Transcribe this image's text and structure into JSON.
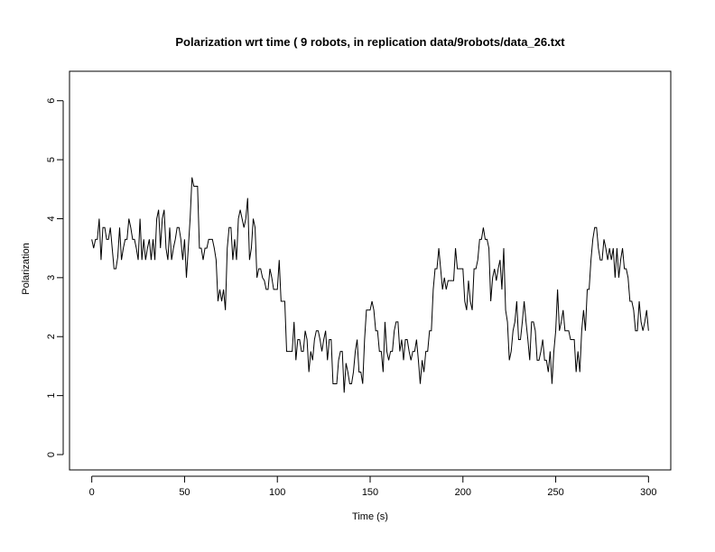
{
  "chart_data": {
    "type": "line",
    "title": "Polarization wrt time ( 9 robots, in replication  data/9robots/data_26.txt",
    "xlabel": "Time (s)",
    "ylabel": "Polarization",
    "xlim": [
      -12,
      312
    ],
    "ylim": [
      -0.26,
      6.5
    ],
    "x_ticks": [
      0,
      50,
      100,
      150,
      200,
      250,
      300
    ],
    "y_ticks": [
      0,
      1,
      2,
      3,
      4,
      5,
      6
    ],
    "grid": false,
    "series": [
      {
        "values": [
          [
            0,
            3.65
          ],
          [
            1,
            3.5
          ],
          [
            2,
            3.65
          ],
          [
            3,
            3.65
          ],
          [
            4,
            4.0
          ],
          [
            5,
            3.3
          ],
          [
            6,
            3.85
          ],
          [
            7,
            3.85
          ],
          [
            8,
            3.65
          ],
          [
            9,
            3.65
          ],
          [
            10,
            3.85
          ],
          [
            11,
            3.5
          ],
          [
            12,
            3.15
          ],
          [
            13,
            3.15
          ],
          [
            14,
            3.35
          ],
          [
            15,
            3.85
          ],
          [
            16,
            3.3
          ],
          [
            17,
            3.5
          ],
          [
            18,
            3.65
          ],
          [
            19,
            3.65
          ],
          [
            20,
            4.0
          ],
          [
            21,
            3.85
          ],
          [
            22,
            3.65
          ],
          [
            23,
            3.65
          ],
          [
            24,
            3.5
          ],
          [
            25,
            3.3
          ],
          [
            26,
            4.0
          ],
          [
            27,
            3.3
          ],
          [
            28,
            3.65
          ],
          [
            29,
            3.3
          ],
          [
            30,
            3.5
          ],
          [
            31,
            3.65
          ],
          [
            32,
            3.3
          ],
          [
            33,
            3.65
          ],
          [
            34,
            3.3
          ],
          [
            35,
            4.0
          ],
          [
            36,
            4.15
          ],
          [
            37,
            3.5
          ],
          [
            38,
            4.0
          ],
          [
            39,
            4.15
          ],
          [
            40,
            3.5
          ],
          [
            41,
            3.3
          ],
          [
            42,
            3.85
          ],
          [
            43,
            3.3
          ],
          [
            44,
            3.5
          ],
          [
            45,
            3.65
          ],
          [
            46,
            3.85
          ],
          [
            47,
            3.85
          ],
          [
            48,
            3.65
          ],
          [
            49,
            3.3
          ],
          [
            50,
            3.65
          ],
          [
            51,
            3.0
          ],
          [
            52,
            3.5
          ],
          [
            53,
            4.0
          ],
          [
            54,
            4.7
          ],
          [
            55,
            4.55
          ],
          [
            56,
            4.55
          ],
          [
            57,
            4.55
          ],
          [
            58,
            3.5
          ],
          [
            59,
            3.5
          ],
          [
            60,
            3.3
          ],
          [
            61,
            3.5
          ],
          [
            62,
            3.5
          ],
          [
            63,
            3.65
          ],
          [
            64,
            3.65
          ],
          [
            65,
            3.65
          ],
          [
            66,
            3.5
          ],
          [
            67,
            3.3
          ],
          [
            68,
            2.6
          ],
          [
            69,
            2.8
          ],
          [
            70,
            2.6
          ],
          [
            71,
            2.8
          ],
          [
            72,
            2.45
          ],
          [
            73,
            3.5
          ],
          [
            74,
            3.85
          ],
          [
            75,
            3.85
          ],
          [
            76,
            3.3
          ],
          [
            77,
            3.65
          ],
          [
            78,
            3.3
          ],
          [
            79,
            4.0
          ],
          [
            80,
            4.15
          ],
          [
            81,
            4.0
          ],
          [
            82,
            3.85
          ],
          [
            83,
            4.0
          ],
          [
            84,
            4.35
          ],
          [
            85,
            3.3
          ],
          [
            86,
            3.5
          ],
          [
            87,
            4.0
          ],
          [
            88,
            3.85
          ],
          [
            89,
            3.0
          ],
          [
            90,
            3.15
          ],
          [
            91,
            3.15
          ],
          [
            92,
            3.0
          ],
          [
            93,
            2.95
          ],
          [
            94,
            2.8
          ],
          [
            95,
            2.8
          ],
          [
            96,
            3.15
          ],
          [
            97,
            3.0
          ],
          [
            98,
            2.8
          ],
          [
            99,
            2.8
          ],
          [
            100,
            2.8
          ],
          [
            101,
            3.3
          ],
          [
            102,
            2.6
          ],
          [
            103,
            2.6
          ],
          [
            104,
            2.6
          ],
          [
            105,
            1.75
          ],
          [
            106,
            1.75
          ],
          [
            107,
            1.75
          ],
          [
            108,
            1.75
          ],
          [
            109,
            2.25
          ],
          [
            110,
            1.6
          ],
          [
            111,
            1.95
          ],
          [
            112,
            1.95
          ],
          [
            113,
            1.75
          ],
          [
            114,
            1.75
          ],
          [
            115,
            2.1
          ],
          [
            116,
            1.95
          ],
          [
            117,
            1.4
          ],
          [
            118,
            1.75
          ],
          [
            119,
            1.6
          ],
          [
            120,
            1.95
          ],
          [
            121,
            2.1
          ],
          [
            122,
            2.1
          ],
          [
            123,
            1.95
          ],
          [
            124,
            1.75
          ],
          [
            125,
            1.95
          ],
          [
            126,
            2.1
          ],
          [
            127,
            1.6
          ],
          [
            128,
            1.95
          ],
          [
            129,
            1.95
          ],
          [
            130,
            1.2
          ],
          [
            131,
            1.2
          ],
          [
            132,
            1.2
          ],
          [
            133,
            1.6
          ],
          [
            134,
            1.75
          ],
          [
            135,
            1.75
          ],
          [
            136,
            1.05
          ],
          [
            137,
            1.55
          ],
          [
            138,
            1.4
          ],
          [
            139,
            1.2
          ],
          [
            140,
            1.2
          ],
          [
            141,
            1.4
          ],
          [
            142,
            1.75
          ],
          [
            143,
            1.95
          ],
          [
            144,
            1.4
          ],
          [
            145,
            1.4
          ],
          [
            146,
            1.2
          ],
          [
            147,
            1.95
          ],
          [
            148,
            2.45
          ],
          [
            149,
            2.45
          ],
          [
            150,
            2.45
          ],
          [
            151,
            2.6
          ],
          [
            152,
            2.45
          ],
          [
            153,
            2.1
          ],
          [
            154,
            2.1
          ],
          [
            155,
            1.75
          ],
          [
            156,
            1.75
          ],
          [
            157,
            1.4
          ],
          [
            158,
            2.25
          ],
          [
            159,
            1.75
          ],
          [
            160,
            1.6
          ],
          [
            161,
            1.75
          ],
          [
            162,
            1.75
          ],
          [
            163,
            2.1
          ],
          [
            164,
            2.25
          ],
          [
            165,
            2.25
          ],
          [
            166,
            1.75
          ],
          [
            167,
            1.95
          ],
          [
            168,
            1.6
          ],
          [
            169,
            1.95
          ],
          [
            170,
            1.95
          ],
          [
            171,
            1.75
          ],
          [
            172,
            1.6
          ],
          [
            173,
            1.75
          ],
          [
            174,
            1.75
          ],
          [
            175,
            1.95
          ],
          [
            176,
            1.6
          ],
          [
            177,
            1.2
          ],
          [
            178,
            1.6
          ],
          [
            179,
            1.4
          ],
          [
            180,
            1.75
          ],
          [
            181,
            1.75
          ],
          [
            182,
            2.1
          ],
          [
            183,
            2.1
          ],
          [
            184,
            2.8
          ],
          [
            185,
            3.15
          ],
          [
            186,
            3.15
          ],
          [
            187,
            3.5
          ],
          [
            188,
            3.15
          ],
          [
            189,
            2.8
          ],
          [
            190,
            3.0
          ],
          [
            191,
            2.8
          ],
          [
            192,
            2.95
          ],
          [
            193,
            2.95
          ],
          [
            194,
            2.95
          ],
          [
            195,
            2.95
          ],
          [
            196,
            3.5
          ],
          [
            197,
            3.15
          ],
          [
            198,
            3.15
          ],
          [
            199,
            3.15
          ],
          [
            200,
            3.15
          ],
          [
            201,
            2.6
          ],
          [
            202,
            2.45
          ],
          [
            203,
            2.95
          ],
          [
            204,
            2.6
          ],
          [
            205,
            2.45
          ],
          [
            206,
            3.15
          ],
          [
            207,
            3.15
          ],
          [
            208,
            3.3
          ],
          [
            209,
            3.65
          ],
          [
            210,
            3.65
          ],
          [
            211,
            3.85
          ],
          [
            212,
            3.65
          ],
          [
            213,
            3.65
          ],
          [
            214,
            3.5
          ],
          [
            215,
            2.6
          ],
          [
            216,
            3.0
          ],
          [
            217,
            3.15
          ],
          [
            218,
            2.95
          ],
          [
            219,
            3.15
          ],
          [
            220,
            3.3
          ],
          [
            221,
            2.8
          ],
          [
            222,
            3.5
          ],
          [
            223,
            2.45
          ],
          [
            224,
            2.25
          ],
          [
            225,
            1.6
          ],
          [
            226,
            1.75
          ],
          [
            227,
            2.1
          ],
          [
            228,
            2.25
          ],
          [
            229,
            2.6
          ],
          [
            230,
            1.95
          ],
          [
            231,
            1.95
          ],
          [
            232,
            2.25
          ],
          [
            233,
            2.6
          ],
          [
            234,
            2.25
          ],
          [
            235,
            1.95
          ],
          [
            236,
            1.6
          ],
          [
            237,
            2.25
          ],
          [
            238,
            2.25
          ],
          [
            239,
            2.1
          ],
          [
            240,
            1.6
          ],
          [
            241,
            1.6
          ],
          [
            242,
            1.75
          ],
          [
            243,
            1.95
          ],
          [
            244,
            1.6
          ],
          [
            245,
            1.6
          ],
          [
            246,
            1.4
          ],
          [
            247,
            1.75
          ],
          [
            248,
            1.2
          ],
          [
            249,
            1.75
          ],
          [
            250,
            2.1
          ],
          [
            251,
            2.8
          ],
          [
            252,
            2.1
          ],
          [
            253,
            2.25
          ],
          [
            254,
            2.45
          ],
          [
            255,
            2.1
          ],
          [
            256,
            2.1
          ],
          [
            257,
            2.1
          ],
          [
            258,
            1.95
          ],
          [
            259,
            1.95
          ],
          [
            260,
            1.95
          ],
          [
            261,
            1.4
          ],
          [
            262,
            1.75
          ],
          [
            263,
            1.4
          ],
          [
            264,
            2.1
          ],
          [
            265,
            2.45
          ],
          [
            266,
            2.1
          ],
          [
            267,
            2.8
          ],
          [
            268,
            2.8
          ],
          [
            269,
            3.3
          ],
          [
            270,
            3.65
          ],
          [
            271,
            3.85
          ],
          [
            272,
            3.85
          ],
          [
            273,
            3.5
          ],
          [
            274,
            3.3
          ],
          [
            275,
            3.3
          ],
          [
            276,
            3.65
          ],
          [
            277,
            3.5
          ],
          [
            278,
            3.3
          ],
          [
            279,
            3.5
          ],
          [
            280,
            3.3
          ],
          [
            281,
            3.5
          ],
          [
            282,
            3.0
          ],
          [
            283,
            3.5
          ],
          [
            284,
            3.0
          ],
          [
            285,
            3.3
          ],
          [
            286,
            3.5
          ],
          [
            287,
            3.15
          ],
          [
            288,
            3.15
          ],
          [
            289,
            3.0
          ],
          [
            290,
            2.6
          ],
          [
            291,
            2.6
          ],
          [
            292,
            2.45
          ],
          [
            293,
            2.1
          ],
          [
            294,
            2.1
          ],
          [
            295,
            2.6
          ],
          [
            296,
            2.25
          ],
          [
            297,
            2.1
          ],
          [
            298,
            2.25
          ],
          [
            299,
            2.45
          ],
          [
            300,
            2.1
          ]
        ]
      }
    ]
  }
}
